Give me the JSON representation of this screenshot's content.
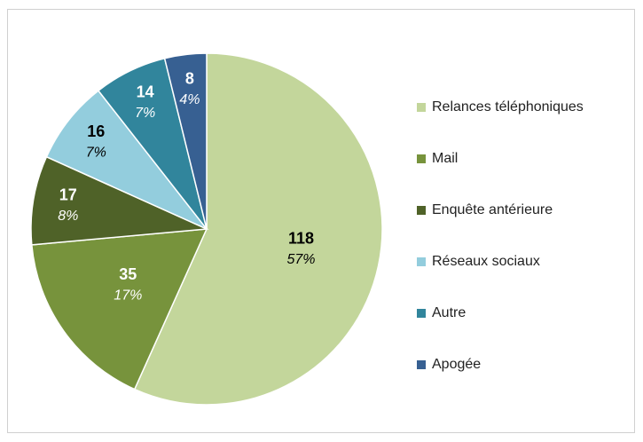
{
  "chart_data": {
    "type": "pie",
    "categories": [
      "Relances téléphoniques",
      "Mail",
      "Enquête antérieure",
      "Réseaux sociaux",
      "Autre",
      "Apogée"
    ],
    "values": [
      118,
      35,
      17,
      16,
      14,
      8
    ],
    "percent_labels": [
      "57%",
      "17%",
      "8%",
      "7%",
      "7%",
      "4%"
    ],
    "colors": [
      "#c3d69b",
      "#77933c",
      "#4f6228",
      "#93cddd",
      "#31859c",
      "#376092"
    ],
    "label_colors": [
      "#000000",
      "#ffffff",
      "#ffffff",
      "#000000",
      "#ffffff",
      "#ffffff"
    ],
    "legend": "right"
  }
}
